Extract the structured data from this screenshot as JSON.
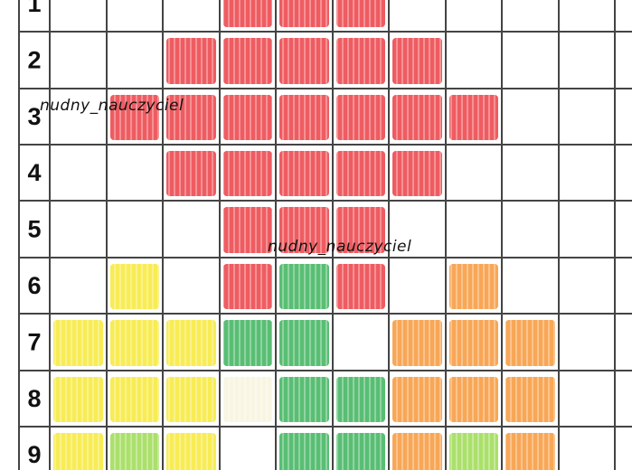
{
  "worksheet": {
    "row_labels": [
      "1",
      "2",
      "3",
      "4",
      "5",
      "6",
      "7",
      "8",
      "9"
    ],
    "watermarks": [
      "nudny_nauczyciel",
      "nudny_nauczyciel"
    ]
  }
}
